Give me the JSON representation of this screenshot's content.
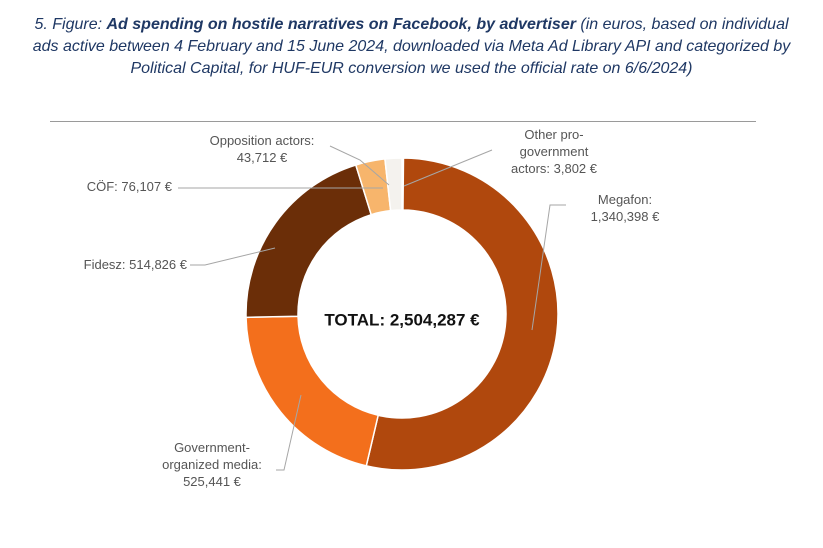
{
  "caption": {
    "prefix": "5. Figure: ",
    "title": "Ad spending on hostile narratives on Facebook, by advertiser",
    "rest": " (in euros, based on individual ads active between 4 February and 15 June 2024, downloaded via Meta Ad Library API and categorized by Political Capital, for HUF-EUR conversion we used the official rate on 6/6/2024)"
  },
  "chart_data": {
    "type": "pie",
    "variant": "donut",
    "center_label": "TOTAL: 2,504,287 €",
    "total": 2504287,
    "slices": [
      {
        "key": "other",
        "label_lines": [
          "Other pro-",
          "government",
          "actors: 3,802 €"
        ],
        "value": 3802,
        "color": "#2e86de"
      },
      {
        "key": "megafon",
        "label_lines": [
          "Megafon:",
          "1,340,398 €"
        ],
        "value": 1340398,
        "color": "#b0480d"
      },
      {
        "key": "gov_media",
        "label_lines": [
          "Government-",
          "organized media:",
          "525,441 €"
        ],
        "value": 525441,
        "color": "#f36f1c"
      },
      {
        "key": "fidesz",
        "label_lines": [
          "Fidesz: 514,826 €"
        ],
        "value": 514826,
        "color": "#6b2e08"
      },
      {
        "key": "cof",
        "label_lines": [
          "CÖF: 76,107 €"
        ],
        "value": 76107,
        "color": "#f7b56c"
      },
      {
        "key": "opposition",
        "label_lines": [
          "Opposition actors:",
          "43,712 €"
        ],
        "value": 43712,
        "color": "#f4f2ee"
      }
    ]
  }
}
